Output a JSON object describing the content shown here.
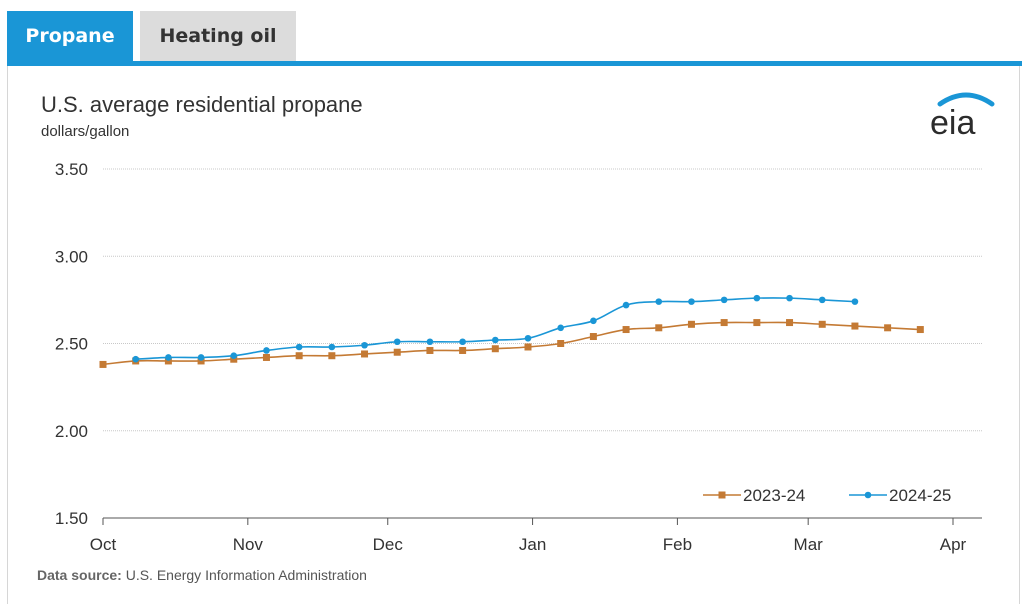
{
  "tabs": [
    {
      "label": "Propane",
      "active": true
    },
    {
      "label": "Heating oil",
      "active": false
    }
  ],
  "logo_text": "eia",
  "source": {
    "label": "Data source:",
    "text": "U.S. Energy Information Administration"
  },
  "colors": {
    "accent": "#1a96d6",
    "series_2023": "#c47a34",
    "series_2024": "#1a96d6"
  },
  "chart_data": {
    "type": "line",
    "title": "U.S. average residential propane",
    "ylabel": "dollars/gallon",
    "ylim": [
      1.5,
      3.5
    ],
    "yticks": [
      1.5,
      2.0,
      2.5,
      3.0,
      3.5
    ],
    "ytick_labels": [
      "1.50",
      "2.00",
      "2.50",
      "3.00",
      "3.50"
    ],
    "xlim_weeks": [
      0,
      26
    ],
    "xticks": [
      {
        "label": "Oct",
        "week": 0
      },
      {
        "label": "Nov",
        "week": 4.43
      },
      {
        "label": "Dec",
        "week": 8.71
      },
      {
        "label": "Jan",
        "week": 13.14
      },
      {
        "label": "Feb",
        "week": 17.57
      },
      {
        "label": "Mar",
        "week": 21.57
      },
      {
        "label": "Apr",
        "week": 26
      }
    ],
    "legend_position": "bottom-right",
    "series": [
      {
        "name": "2023-24",
        "marker": "square",
        "x": [
          0,
          1,
          2,
          3,
          4,
          5,
          6,
          7,
          8,
          9,
          10,
          11,
          12,
          13,
          14,
          15,
          16,
          17,
          18,
          19,
          20,
          21,
          22,
          23,
          24,
          25
        ],
        "values": [
          2.38,
          2.4,
          2.4,
          2.4,
          2.41,
          2.42,
          2.43,
          2.43,
          2.44,
          2.45,
          2.46,
          2.46,
          2.47,
          2.48,
          2.5,
          2.54,
          2.58,
          2.59,
          2.61,
          2.62,
          2.62,
          2.62,
          2.61,
          2.6,
          2.59,
          2.58
        ]
      },
      {
        "name": "2024-25",
        "marker": "circle",
        "x": [
          1,
          2,
          3,
          4,
          5,
          6,
          7,
          8,
          9,
          10,
          11,
          12,
          13,
          14,
          15,
          16,
          17,
          18,
          19,
          20,
          21,
          22,
          23
        ],
        "values": [
          2.41,
          2.42,
          2.42,
          2.43,
          2.46,
          2.48,
          2.48,
          2.49,
          2.51,
          2.51,
          2.51,
          2.52,
          2.53,
          2.59,
          2.63,
          2.72,
          2.74,
          2.74,
          2.75,
          2.76,
          2.76,
          2.75,
          2.74
        ]
      }
    ]
  }
}
